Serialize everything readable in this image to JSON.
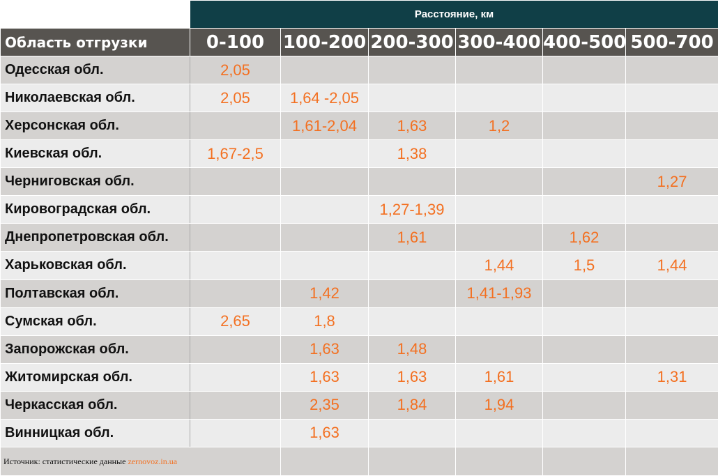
{
  "table": {
    "distance_title": "Расстояние, км",
    "region_header": "Область отгрузки",
    "ranges": [
      "0-100",
      "100-200",
      "200-300",
      "300-400",
      "400-500",
      "500-700"
    ],
    "rows": [
      {
        "region": "Одесская обл.",
        "values": [
          "2,05",
          "",
          "",
          "",
          "",
          ""
        ]
      },
      {
        "region": "Николаевская обл.",
        "values": [
          "2,05",
          "1,64 -2,05",
          "",
          "",
          "",
          ""
        ]
      },
      {
        "region": "Херсонская обл.",
        "values": [
          "",
          "1,61-2,04",
          "1,63",
          "1,2",
          "",
          ""
        ]
      },
      {
        "region": "Киевская обл.",
        "values": [
          "1,67-2,5",
          "",
          "1,38",
          "",
          "",
          ""
        ]
      },
      {
        "region": "Черниговская обл.",
        "values": [
          "",
          "",
          "",
          "",
          "",
          "1,27"
        ]
      },
      {
        "region": "Кировоградская обл.",
        "values": [
          "",
          "",
          "1,27-1,39",
          "",
          "",
          ""
        ]
      },
      {
        "region": "Днепропетровская обл.",
        "values": [
          "",
          "",
          "1,61",
          "",
          "1,62",
          ""
        ]
      },
      {
        "region": "Харьковская обл.",
        "values": [
          "",
          "",
          "",
          "1,44",
          "1,5",
          "1,44"
        ]
      },
      {
        "region": "Полтавская обл.",
        "values": [
          "",
          "1,42",
          "",
          "1,41-1,93",
          "",
          ""
        ]
      },
      {
        "region": "Сумская обл.",
        "values": [
          "2,65",
          "1,8",
          "",
          "",
          "",
          ""
        ]
      },
      {
        "region": "Запорожская обл.",
        "values": [
          "",
          "1,63",
          "1,48",
          "",
          "",
          ""
        ]
      },
      {
        "region": "Житомирская обл.",
        "values": [
          "",
          "1,63",
          "1,63",
          "1,61",
          "",
          "1,31"
        ]
      },
      {
        "region": "Черкасская обл.",
        "values": [
          "",
          "2,35",
          "1,84",
          "1,94",
          "",
          ""
        ]
      },
      {
        "region": "Винницкая обл.",
        "values": [
          "",
          "1,63",
          "",
          "",
          "",
          ""
        ]
      }
    ]
  },
  "footer": {
    "source_label": "Источник: статистические данные",
    "source_link": "zernovoz.in.ua"
  },
  "colors": {
    "title_bg": "#103f47",
    "header_bg": "#575450",
    "value_text": "#f37021",
    "row_dark": "#d4d2d0",
    "row_light": "#ececec"
  }
}
